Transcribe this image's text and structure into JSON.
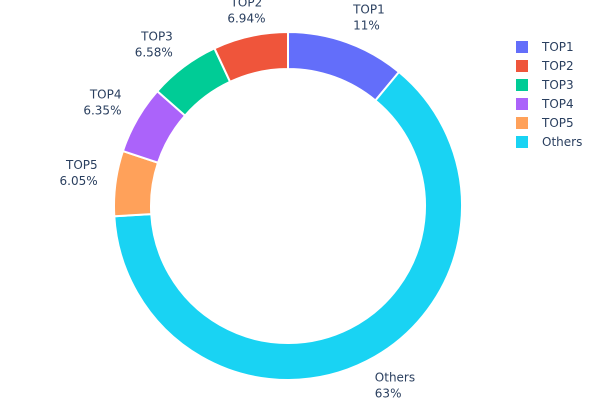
{
  "chart_data": {
    "type": "pie",
    "hole": true,
    "direction": "clockwise",
    "start": "top",
    "legend_position": "top-right",
    "slices": [
      {
        "label": "TOP1",
        "value": 11,
        "text": "11%",
        "color": "#636efa"
      },
      {
        "label": "Others",
        "value": 63,
        "text": "63%",
        "color": "#19d3f3"
      },
      {
        "label": "TOP5",
        "value": 6.05,
        "text": "6.05%",
        "color": "#FFA15A"
      },
      {
        "label": "TOP4",
        "value": 6.35,
        "text": "6.35%",
        "color": "#ab63fa"
      },
      {
        "label": "TOP3",
        "value": 6.58,
        "text": "6.58%",
        "color": "#00cc96"
      },
      {
        "label": "TOP2",
        "value": 6.94,
        "text": "6.94%",
        "color": "#EF553B"
      }
    ],
    "legend": [
      {
        "label": "TOP1",
        "color": "#636efa"
      },
      {
        "label": "TOP2",
        "color": "#EF553B"
      },
      {
        "label": "TOP3",
        "color": "#00cc96"
      },
      {
        "label": "TOP4",
        "color": "#ab63fa"
      },
      {
        "label": "TOP5",
        "color": "#FFA15A"
      },
      {
        "label": "Others",
        "color": "#19d3f3"
      }
    ]
  }
}
